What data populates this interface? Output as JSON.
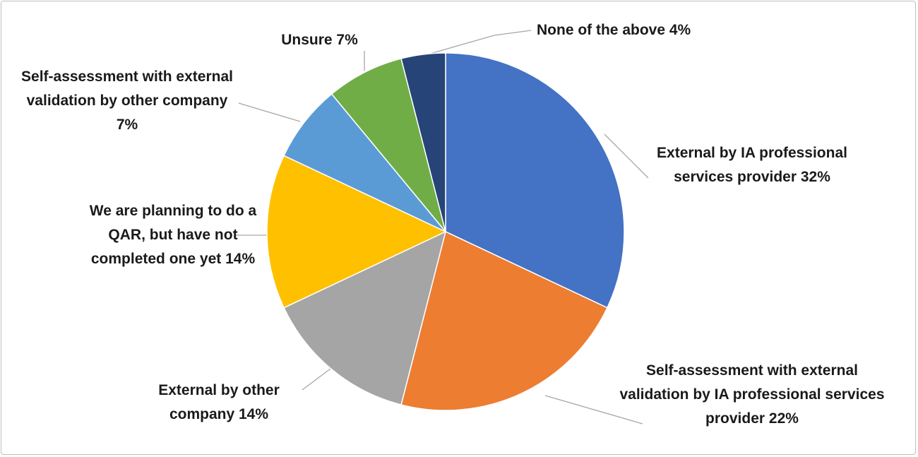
{
  "chart_data": {
    "type": "pie",
    "categories": [
      "External by IA professional services provider",
      "Self-assessment with external validation by IA professional services provider",
      "External by other company",
      "We are planning to do a QAR, but have not completed one yet",
      "Self-assessment with external validation by other company",
      "Unsure ",
      "None of the above"
    ],
    "values": [
      32,
      22,
      14,
      14,
      7,
      7,
      4
    ],
    "value_labels": [
      "32%",
      "22%",
      "14%",
      "14%",
      "7%",
      "7%",
      "4%"
    ],
    "colors": [
      "#4472c4",
      "#ed7d31",
      "#a5a5a5",
      "#ffc000",
      "#5b9bd5",
      "#70ad47",
      "#264478"
    ]
  }
}
